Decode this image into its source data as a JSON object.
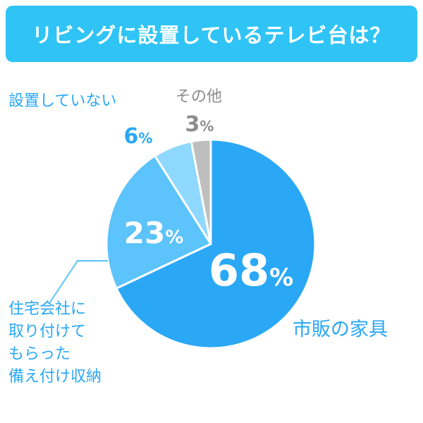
{
  "title": "リビングに設置しているテレビ台は？",
  "colors": {
    "title_bg": "#2fc4f5",
    "slice_main": "#2aa8f5",
    "slice_second": "#5cc3fb",
    "slice_third": "#8fd8ff",
    "slice_other": "#bebebe",
    "text_blue": "#2aa8f5",
    "text_gray": "#8c8c8c"
  },
  "chart_data": {
    "type": "pie",
    "title": "リビングに設置しているテレビ台は？",
    "slices": [
      {
        "label": "市販の家具",
        "value": 68,
        "value_text": "68",
        "unit": "%",
        "color": "#2aa8f5"
      },
      {
        "label": "住宅会社に取り付けてもらった備え付け収納",
        "label_lines": [
          "住宅会社に",
          "取り付けて",
          "もらった",
          "備え付け収納"
        ],
        "value": 23,
        "value_text": "23",
        "unit": "%",
        "color": "#5cc3fb"
      },
      {
        "label": "設置していない",
        "value": 6,
        "value_text": "6",
        "unit": "%",
        "color": "#8fd8ff"
      },
      {
        "label": "その他",
        "value": 3,
        "value_text": "3",
        "unit": "%",
        "color": "#bebebe"
      }
    ]
  }
}
